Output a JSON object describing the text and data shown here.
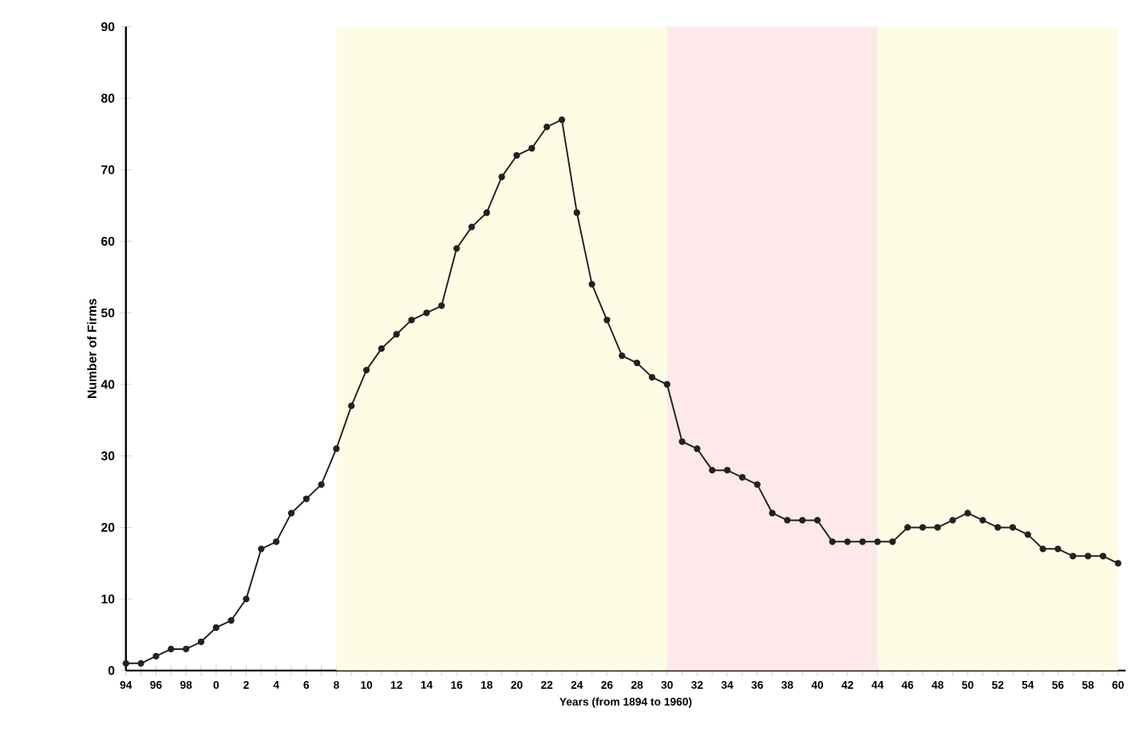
{
  "chart_data": {
    "type": "line",
    "xlabel": "Years (from 1894 to 1960)",
    "ylabel": "Number of Firms",
    "categories": [
      "94",
      null,
      "96",
      null,
      "98",
      null,
      "0",
      null,
      "2",
      null,
      "4",
      null,
      "6",
      null,
      "8",
      null,
      "10",
      null,
      "12",
      null,
      "14",
      null,
      "16",
      null,
      "18",
      null,
      "20",
      null,
      "22",
      null,
      "24",
      null,
      "26",
      null,
      "28",
      null,
      "30",
      null,
      "32",
      null,
      "34",
      null,
      "36",
      null,
      "38",
      null,
      "40",
      null,
      "42",
      null,
      "44",
      null,
      "46",
      null,
      "48",
      null,
      "50",
      null,
      "52",
      null,
      "54",
      null,
      "56",
      null,
      "58",
      null,
      "60"
    ],
    "series": [
      {
        "color": "#222222",
        "values": [
          1,
          1,
          2,
          3,
          3,
          4,
          6,
          7,
          10,
          17,
          18,
          22,
          24,
          26,
          31,
          37,
          42,
          45,
          47,
          49,
          50,
          51,
          59,
          62,
          64,
          69,
          72,
          73,
          76,
          77,
          64,
          54,
          49,
          44,
          43,
          41,
          40,
          32,
          31,
          28,
          28,
          27,
          26,
          22,
          21,
          21,
          21,
          18,
          18,
          18,
          18,
          18,
          20,
          20,
          20,
          21,
          22,
          21,
          20,
          20,
          19,
          17,
          17,
          16,
          16,
          16,
          15
        ]
      }
    ],
    "marker": "circle",
    "line_style": "solid",
    "legend": false,
    "grid": false,
    "ylim": [
      0,
      90
    ],
    "yticks": [
      0,
      10,
      20,
      30,
      40,
      50,
      60,
      70,
      80,
      90
    ],
    "bands": [
      {
        "axis": "x",
        "from": "8",
        "to": "30",
        "color": "#fdfde6"
      },
      {
        "axis": "x",
        "from": "30",
        "to": "44",
        "color": "#fde8ea"
      },
      {
        "axis": "x",
        "from": "44",
        "to": "60",
        "color": "#fdfde6"
      }
    ]
  }
}
